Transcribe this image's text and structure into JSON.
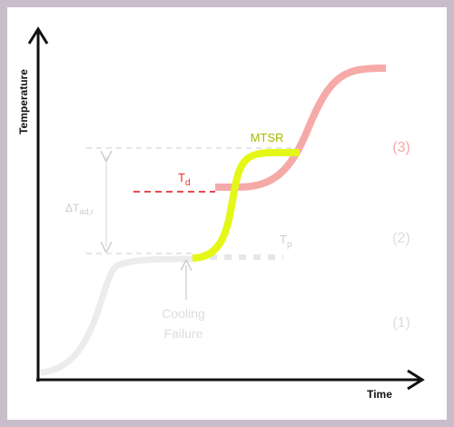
{
  "axes": {
    "y_label": "Temperature",
    "x_label": "Time"
  },
  "annotations": {
    "mtsr": "MTSR",
    "td": {
      "main": "T",
      "sub": "d"
    },
    "tp": {
      "main": "T",
      "sub": "p"
    },
    "delta": {
      "main": "ΔT",
      "sub": "ad,r"
    },
    "cooling_failure": [
      "Cooling",
      "Failure"
    ]
  },
  "stages": [
    "(1)",
    "(2)",
    "(3)"
  ]
}
